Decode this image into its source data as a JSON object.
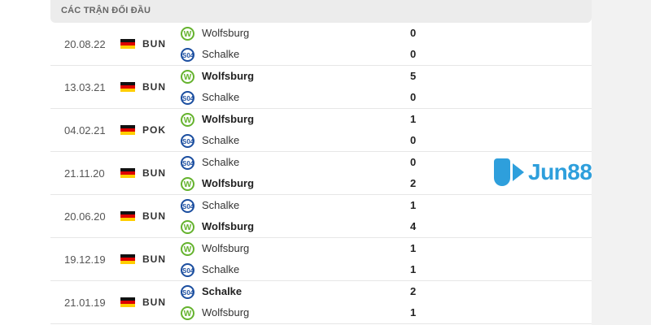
{
  "section_title": "CÁC TRẬN ĐỐI ĐẦU",
  "brand": {
    "text": "Jun88",
    "color": "#2e9fdc"
  },
  "matches": [
    {
      "date": "20.08.22",
      "competition": "BUN",
      "teams": [
        {
          "name": "Wolfsburg",
          "logo": "wolfsburg",
          "score": "0",
          "winner": false
        },
        {
          "name": "Schalke",
          "logo": "schalke",
          "score": "0",
          "winner": false
        }
      ]
    },
    {
      "date": "13.03.21",
      "competition": "BUN",
      "teams": [
        {
          "name": "Wolfsburg",
          "logo": "wolfsburg",
          "score": "5",
          "winner": true
        },
        {
          "name": "Schalke",
          "logo": "schalke",
          "score": "0",
          "winner": false
        }
      ]
    },
    {
      "date": "04.02.21",
      "competition": "POK",
      "teams": [
        {
          "name": "Wolfsburg",
          "logo": "wolfsburg",
          "score": "1",
          "winner": true
        },
        {
          "name": "Schalke",
          "logo": "schalke",
          "score": "0",
          "winner": false
        }
      ]
    },
    {
      "date": "21.11.20",
      "competition": "BUN",
      "teams": [
        {
          "name": "Schalke",
          "logo": "schalke",
          "score": "0",
          "winner": false
        },
        {
          "name": "Wolfsburg",
          "logo": "wolfsburg",
          "score": "2",
          "winner": true
        }
      ]
    },
    {
      "date": "20.06.20",
      "competition": "BUN",
      "teams": [
        {
          "name": "Schalke",
          "logo": "schalke",
          "score": "1",
          "winner": false
        },
        {
          "name": "Wolfsburg",
          "logo": "wolfsburg",
          "score": "4",
          "winner": true
        }
      ]
    },
    {
      "date": "19.12.19",
      "competition": "BUN",
      "teams": [
        {
          "name": "Wolfsburg",
          "logo": "wolfsburg",
          "score": "1",
          "winner": false
        },
        {
          "name": "Schalke",
          "logo": "schalke",
          "score": "1",
          "winner": false
        }
      ]
    },
    {
      "date": "21.01.19",
      "competition": "BUN",
      "teams": [
        {
          "name": "Schalke",
          "logo": "schalke",
          "score": "2",
          "winner": true
        },
        {
          "name": "Wolfsburg",
          "logo": "wolfsburg",
          "score": "1",
          "winner": false
        }
      ]
    }
  ]
}
